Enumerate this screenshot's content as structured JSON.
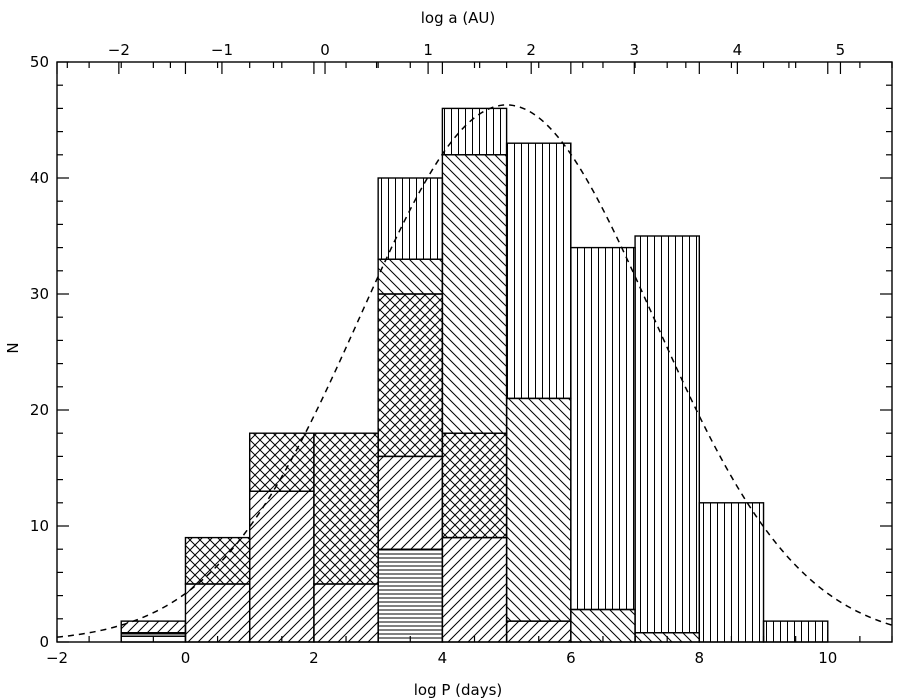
{
  "chart_data": {
    "type": "bar",
    "stacked": true,
    "xlabel": "log P (days)",
    "ylabel": "N",
    "x2label": "log a (AU)",
    "xlim": [
      -2,
      11
    ],
    "ylim": [
      0,
      50
    ],
    "x2lim": [
      -2.6,
      5.5
    ],
    "x_ticks": [
      -2,
      0,
      2,
      4,
      6,
      8,
      10
    ],
    "x2_ticks": [
      -2,
      -1,
      0,
      1,
      2,
      3,
      4,
      5
    ],
    "y_ticks": [
      0,
      10,
      20,
      30,
      40,
      50
    ],
    "grid": false,
    "bin_edges": [
      -1,
      0,
      1,
      2,
      3,
      4,
      5,
      6,
      7,
      8,
      9,
      10
    ],
    "bins": [
      {
        "x0": -1,
        "x1": 0,
        "segments": [
          {
            "pattern": "open",
            "from": 0,
            "to": 0.5
          },
          {
            "pattern": "horizontal",
            "from": 0.5,
            "to": 0.8
          },
          {
            "pattern": "diag-right",
            "from": 0.8,
            "to": 1.8
          }
        ]
      },
      {
        "x0": 0,
        "x1": 1,
        "segments": [
          {
            "pattern": "diag-right",
            "from": 0,
            "to": 5
          },
          {
            "pattern": "crosshatch",
            "from": 5,
            "to": 9
          }
        ]
      },
      {
        "x0": 1,
        "x1": 2,
        "segments": [
          {
            "pattern": "diag-right",
            "from": 0,
            "to": 13
          },
          {
            "pattern": "crosshatch",
            "from": 13,
            "to": 18
          }
        ]
      },
      {
        "x0": 2,
        "x1": 3,
        "segments": [
          {
            "pattern": "diag-right",
            "from": 0,
            "to": 5
          },
          {
            "pattern": "crosshatch",
            "from": 5,
            "to": 18
          }
        ]
      },
      {
        "x0": 3,
        "x1": 4,
        "segments": [
          {
            "pattern": "horizontal",
            "from": 0,
            "to": 8
          },
          {
            "pattern": "diag-right",
            "from": 8,
            "to": 16
          },
          {
            "pattern": "crosshatch",
            "from": 16,
            "to": 30
          },
          {
            "pattern": "diag-left",
            "from": 30,
            "to": 33
          },
          {
            "pattern": "vertical",
            "from": 33,
            "to": 40
          }
        ]
      },
      {
        "x0": 4,
        "x1": 5,
        "segments": [
          {
            "pattern": "diag-right",
            "from": 0,
            "to": 9
          },
          {
            "pattern": "crosshatch",
            "from": 9,
            "to": 18
          },
          {
            "pattern": "diag-left",
            "from": 18,
            "to": 42
          },
          {
            "pattern": "vertical",
            "from": 42,
            "to": 46
          }
        ]
      },
      {
        "x0": 5,
        "x1": 6,
        "segments": [
          {
            "pattern": "diag-right",
            "from": 0,
            "to": 1.8
          },
          {
            "pattern": "diag-left",
            "from": 1.8,
            "to": 21
          },
          {
            "pattern": "vertical",
            "from": 21,
            "to": 43
          }
        ]
      },
      {
        "x0": 6,
        "x1": 7,
        "segments": [
          {
            "pattern": "diag-left",
            "from": 0,
            "to": 2.8
          },
          {
            "pattern": "vertical",
            "from": 2.8,
            "to": 34
          }
        ]
      },
      {
        "x0": 7,
        "x1": 8,
        "segments": [
          {
            "pattern": "diag-left",
            "from": 0,
            "to": 0.8
          },
          {
            "pattern": "vertical",
            "from": 0.8,
            "to": 35
          }
        ]
      },
      {
        "x0": 8,
        "x1": 9,
        "segments": [
          {
            "pattern": "vertical",
            "from": 0,
            "to": 12
          }
        ]
      },
      {
        "x0": 9,
        "x1": 10,
        "segments": [
          {
            "pattern": "vertical",
            "from": 0,
            "to": 1.8
          }
        ]
      }
    ],
    "curve": {
      "style": "dashed",
      "kind": "gaussian",
      "mean": 5.0,
      "sigma": 2.28,
      "peak": 46.3
    },
    "colors": {
      "line": "#000000",
      "background": "#ffffff"
    }
  }
}
